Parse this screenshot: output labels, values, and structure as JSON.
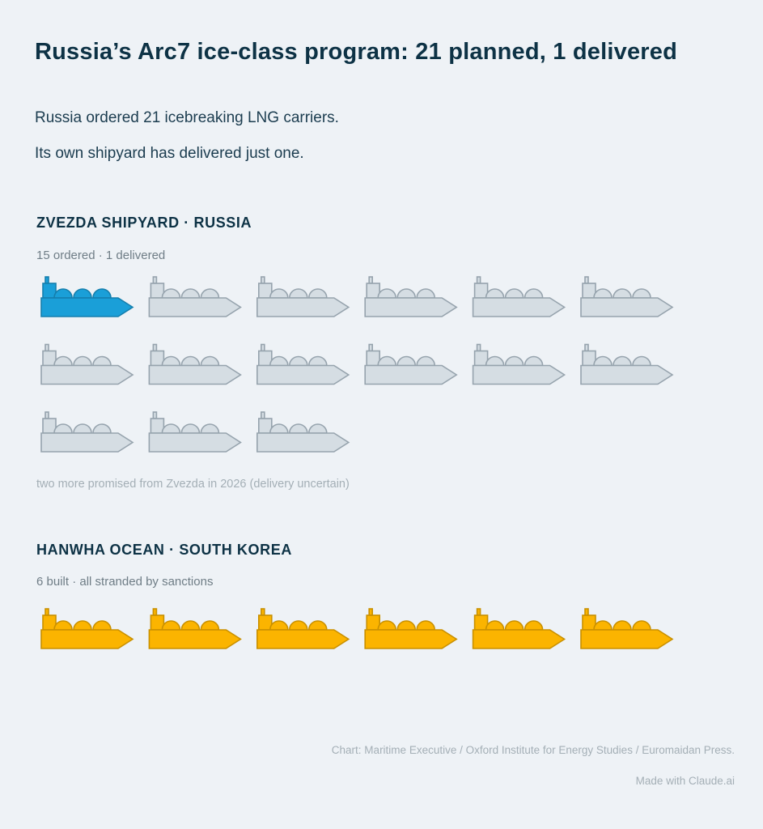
{
  "header": {
    "title": "Russia’s Arc7 ice-class program: 21 planned, 1 delivered",
    "subtitle_1": "Russia ordered 21 icebreaking LNG carriers.",
    "subtitle_2": "Its own shipyard has delivered just one."
  },
  "chart_data": [
    {
      "type": "pictogram",
      "unit": "icebreaking LNG carrier",
      "title": "ZVEZDA SHIPYARD · RUSSIA",
      "subtitle": "15 ordered · 1 delivered",
      "total": 15,
      "highlighted": 1,
      "highlight_color": "#1a9fd8",
      "base_color": "#d5dde3",
      "note": "two more promised from Zvezda in 2026 (delivery uncertain)"
    },
    {
      "type": "pictogram",
      "unit": "icebreaking LNG carrier",
      "title": "HANWHA OCEAN · SOUTH KOREA",
      "subtitle": "6 built · all stranded by sanctions",
      "total": 6,
      "highlighted": 6,
      "highlight_color": "#fbb400",
      "base_color": "#fbb400"
    }
  ],
  "footer": {
    "source": "Chart: Maritime Executive / Oxford Institute for Energy Studies / Euromaidan Press.",
    "credit": "Made with Claude.ai"
  },
  "icons": {
    "ship": "lng-carrier-icon"
  }
}
